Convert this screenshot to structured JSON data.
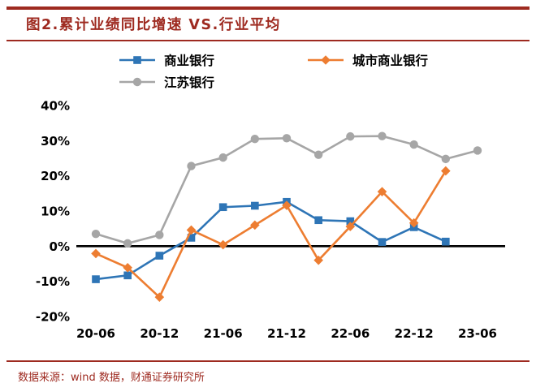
{
  "footer": {
    "source": "数据来源：wind 数据，财通证券研究所"
  },
  "colors": {
    "accent": "#9E2A20",
    "axis": "#000000"
  },
  "chart_data": {
    "type": "line",
    "title": "图2.累计业绩同比增速 VS.行业平均",
    "xlabel": "",
    "ylabel": "",
    "ylim": [
      -20,
      40
    ],
    "grid": false,
    "legend_position": "top-left",
    "y_ticks": [
      40,
      30,
      20,
      10,
      0,
      -10,
      -20
    ],
    "y_tick_format": "percent",
    "x": [
      "20-06",
      "20-09",
      "20-12",
      "21-03",
      "21-06",
      "21-09",
      "21-12",
      "22-03",
      "22-06",
      "22-09",
      "22-12",
      "23-03",
      "23-06"
    ],
    "x_tick_labels": [
      "20-06",
      "20-12",
      "21-06",
      "21-12",
      "22-06",
      "22-12",
      "23-06"
    ],
    "series": [
      {
        "name": "商业银行",
        "key": "commercial-banks",
        "color": "#2E75B6",
        "marker": "square",
        "values": [
          -9.4,
          -8.3,
          -2.7,
          2.4,
          11.1,
          11.5,
          12.6,
          7.4,
          7.1,
          1.2,
          5.4,
          1.3,
          null
        ]
      },
      {
        "name": "城市商业银行",
        "key": "city-commercial-banks",
        "color": "#ED7D31",
        "marker": "diamond",
        "values": [
          -2.1,
          -6.1,
          -14.5,
          4.6,
          0.4,
          6.0,
          11.6,
          -4.0,
          5.6,
          15.5,
          6.6,
          21.4,
          null
        ]
      },
      {
        "name": "江苏银行",
        "key": "jiangsu-bank",
        "color": "#A6A6A6",
        "marker": "circle",
        "values": [
          3.5,
          0.8,
          3.2,
          22.8,
          25.2,
          30.5,
          30.7,
          26.0,
          31.2,
          31.3,
          28.9,
          24.8,
          27.2
        ]
      }
    ]
  }
}
